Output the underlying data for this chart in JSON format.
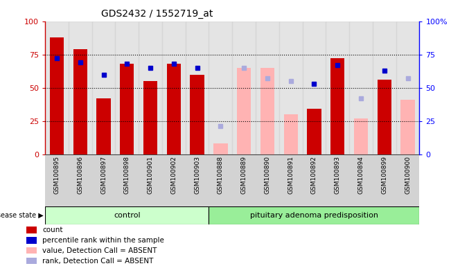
{
  "title": "GDS2432 / 1552719_at",
  "samples": [
    "GSM100895",
    "GSM100896",
    "GSM100897",
    "GSM100898",
    "GSM100901",
    "GSM100902",
    "GSM100903",
    "GSM100888",
    "GSM100889",
    "GSM100890",
    "GSM100891",
    "GSM100892",
    "GSM100893",
    "GSM100894",
    "GSM100899",
    "GSM100900"
  ],
  "n_control": 7,
  "n_pituitary": 9,
  "count_values": [
    88,
    79,
    42,
    68,
    55,
    68,
    60,
    null,
    null,
    null,
    null,
    34,
    72,
    null,
    56,
    null
  ],
  "percentile_rank": [
    72,
    69,
    60,
    68,
    65,
    68,
    65,
    null,
    null,
    null,
    null,
    53,
    67,
    null,
    63,
    null
  ],
  "absent_value": [
    null,
    null,
    null,
    null,
    null,
    null,
    null,
    8,
    65,
    65,
    30,
    null,
    null,
    27,
    null,
    41
  ],
  "absent_rank": [
    null,
    null,
    null,
    null,
    null,
    null,
    null,
    21,
    65,
    57,
    55,
    null,
    null,
    42,
    null,
    57
  ],
  "ylim": [
    0,
    100
  ],
  "yticks": [
    0,
    25,
    50,
    75,
    100
  ],
  "bar_color_present": "#cc0000",
  "bar_color_absent": "#ffb3b3",
  "dot_color_present": "#0000cc",
  "dot_color_absent": "#aaaadd",
  "ctrl_color": "#ccffcc",
  "pit_color": "#99ee99",
  "strip_color": "#d3d3d3",
  "legend_items": [
    {
      "color": "#cc0000",
      "label": "count"
    },
    {
      "color": "#0000cc",
      "label": "percentile rank within the sample"
    },
    {
      "color": "#ffb3b3",
      "label": "value, Detection Call = ABSENT"
    },
    {
      "color": "#aaaadd",
      "label": "rank, Detection Call = ABSENT"
    }
  ]
}
